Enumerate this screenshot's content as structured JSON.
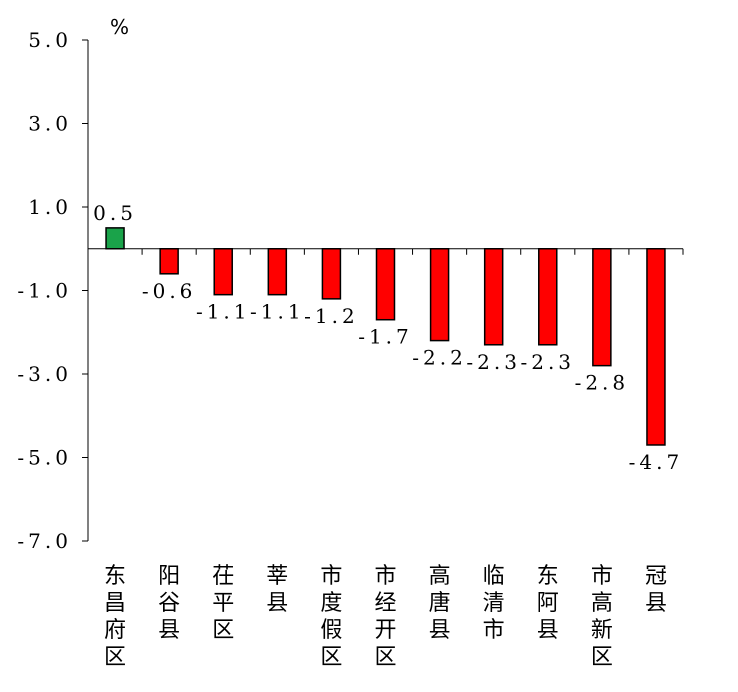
{
  "chart_data": {
    "type": "bar",
    "unit": "%",
    "categories": [
      "东昌府区",
      "阳谷县",
      "茌平区",
      "莘县",
      "市度假区",
      "市经开区",
      "高唐县",
      "临清市",
      "东阿县",
      "市高新区",
      "冠县"
    ],
    "values": [
      0.5,
      -0.6,
      -1.1,
      -1.1,
      -1.2,
      -1.7,
      -2.2,
      -2.3,
      -2.3,
      -2.8,
      -4.7
    ],
    "value_labels": [
      "0.5",
      "-0.6",
      "-1.1",
      "-1.1",
      "-1.2",
      "-1.7",
      "-2.2",
      "-2.3",
      "-2.3",
      "-2.8",
      "-4.7"
    ],
    "y_ticks": [
      5.0,
      3.0,
      1.0,
      -1.0,
      -3.0,
      -5.0,
      -7.0
    ],
    "y_tick_labels": [
      "5.0",
      "3.0",
      "1.0",
      "-1.0",
      "-3.0",
      "-5.0",
      "-7.0"
    ],
    "ylim": [
      -7.0,
      5.0
    ],
    "grid": false,
    "legend": "none",
    "colors": {
      "positive": "#1aa34a",
      "negative": "#ff0000",
      "outline": "#000000"
    }
  }
}
